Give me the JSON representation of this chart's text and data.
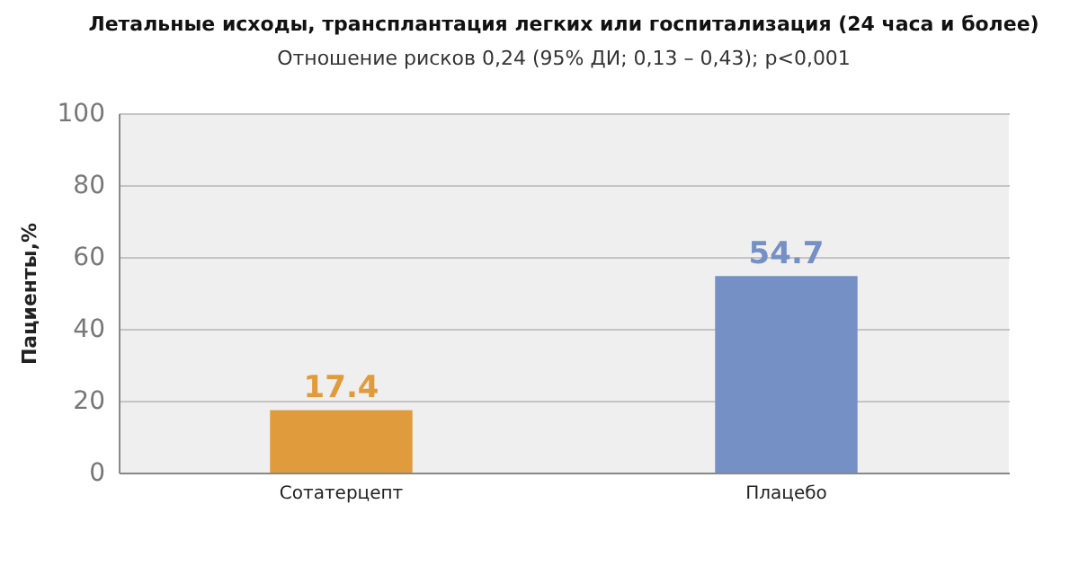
{
  "chart_data": {
    "type": "bar",
    "title": "Летальные исходы, трансплантация легких или госпитализация (24 часа и более)",
    "subtitle": "Отношение рисков 0,24 (95% ДИ; 0,13 – 0,43); p<0,001",
    "ylabel": "Пациенты,%",
    "categories": [
      "Сотатерцепт",
      "Плацебо"
    ],
    "values": [
      17.4,
      54.7
    ],
    "colors": [
      "#e09b3d",
      "#7590c5"
    ],
    "ylim": [
      0,
      100
    ],
    "yticks": [
      0,
      20,
      40,
      60,
      80,
      100
    ],
    "grid": "y",
    "data_labels": true
  }
}
